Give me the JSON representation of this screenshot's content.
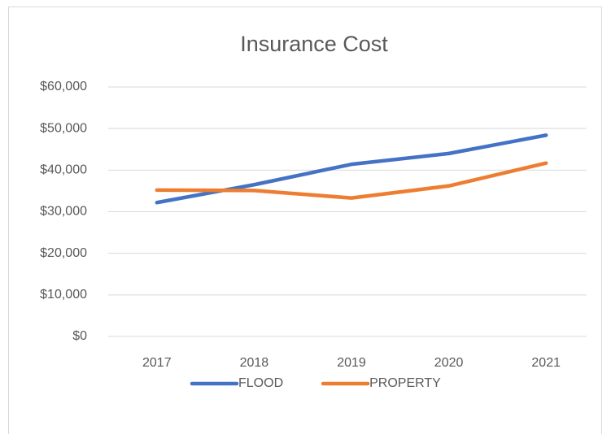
{
  "chart_data": {
    "type": "line",
    "title": "Insurance Cost",
    "categories": [
      "2017",
      "2018",
      "2019",
      "2020",
      "2021"
    ],
    "series": [
      {
        "name": "FLOOD",
        "color": "#4472c4",
        "values": [
          32200,
          36500,
          41400,
          44000,
          48400
        ]
      },
      {
        "name": "PROPERTY",
        "color": "#ed7d31",
        "values": [
          35200,
          35100,
          33300,
          36200,
          41700
        ]
      }
    ],
    "ylim": [
      0,
      60000
    ],
    "yticks": [
      {
        "value": 0,
        "label": "$0"
      },
      {
        "value": 10000,
        "label": "$10,000"
      },
      {
        "value": 20000,
        "label": "$20,000"
      },
      {
        "value": 30000,
        "label": "$30,000"
      },
      {
        "value": 40000,
        "label": "$40,000"
      },
      {
        "value": 50000,
        "label": "$50,000"
      },
      {
        "value": 60000,
        "label": "$60,000"
      }
    ],
    "grid": true,
    "legend": "bottom"
  }
}
